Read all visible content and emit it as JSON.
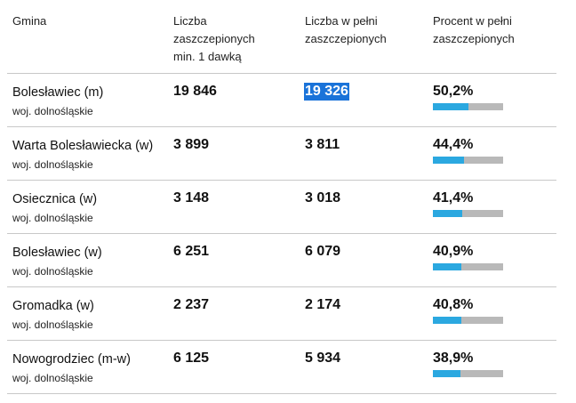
{
  "columns": {
    "gmina": "Gmina",
    "dose1": [
      "Liczba",
      "zaszczepionych",
      "min. 1 dawką"
    ],
    "full": [
      "Liczba w pełni",
      "zaszczepionych"
    ],
    "percent": [
      "Procent w pełni",
      "zaszczepionych"
    ]
  },
  "rows": [
    {
      "name": "Bolesławiec (m)",
      "region": "woj. dolnośląskie",
      "dose1": "19 846",
      "full": "19 326",
      "percent": "50,2%",
      "fraction": 0.502,
      "selected": true
    },
    {
      "name": "Warta Bolesławiecka (w)",
      "region": "woj. dolnośląskie",
      "dose1": "3 899",
      "full": "3 811",
      "percent": "44,4%",
      "fraction": 0.444
    },
    {
      "name": "Osiecznica (w)",
      "region": "woj. dolnośląskie",
      "dose1": "3 148",
      "full": "3 018",
      "percent": "41,4%",
      "fraction": 0.414
    },
    {
      "name": "Bolesławiec (w)",
      "region": "woj. dolnośląskie",
      "dose1": "6 251",
      "full": "6 079",
      "percent": "40,9%",
      "fraction": 0.409
    },
    {
      "name": "Gromadka (w)",
      "region": "woj. dolnośląskie",
      "dose1": "2 237",
      "full": "2 174",
      "percent": "40,8%",
      "fraction": 0.408
    },
    {
      "name": "Nowogrodziec (m-w)",
      "region": "woj. dolnośląskie",
      "dose1": "6 125",
      "full": "5 934",
      "percent": "38,9%",
      "fraction": 0.389
    }
  ],
  "colors": {
    "bar_fill": "#2ba8e0",
    "bar_track": "#b9b9b9",
    "selection": "#1a73d9"
  }
}
